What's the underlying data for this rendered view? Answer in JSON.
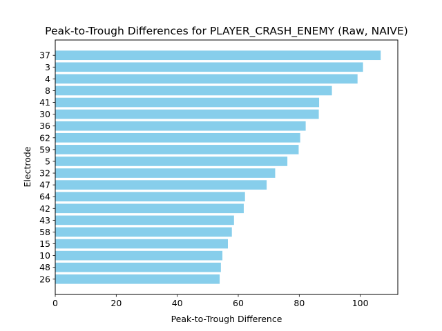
{
  "chart_data": {
    "type": "bar",
    "orientation": "horizontal",
    "title": "Peak-to-Trough Differences for PLAYER_CRASH_ENEMY (Raw, NAIVE)",
    "xlabel": "Peak-to-Trough Difference",
    "ylabel": "Electrode",
    "categories": [
      "37",
      "3",
      "4",
      "8",
      "41",
      "30",
      "36",
      "62",
      "59",
      "5",
      "32",
      "47",
      "64",
      "42",
      "43",
      "58",
      "15",
      "10",
      "48",
      "26"
    ],
    "values": [
      106.7,
      100.9,
      99.1,
      90.7,
      86.5,
      86.4,
      82.1,
      80.3,
      79.8,
      76.1,
      72.1,
      69.3,
      62.2,
      61.8,
      58.6,
      57.9,
      56.6,
      54.8,
      54.3,
      53.9
    ],
    "xlim": [
      0,
      112.3
    ],
    "xticks": [
      0,
      20,
      40,
      60,
      80,
      100
    ],
    "grid": false,
    "legend": "none",
    "bar_color": "#87ceeb"
  }
}
